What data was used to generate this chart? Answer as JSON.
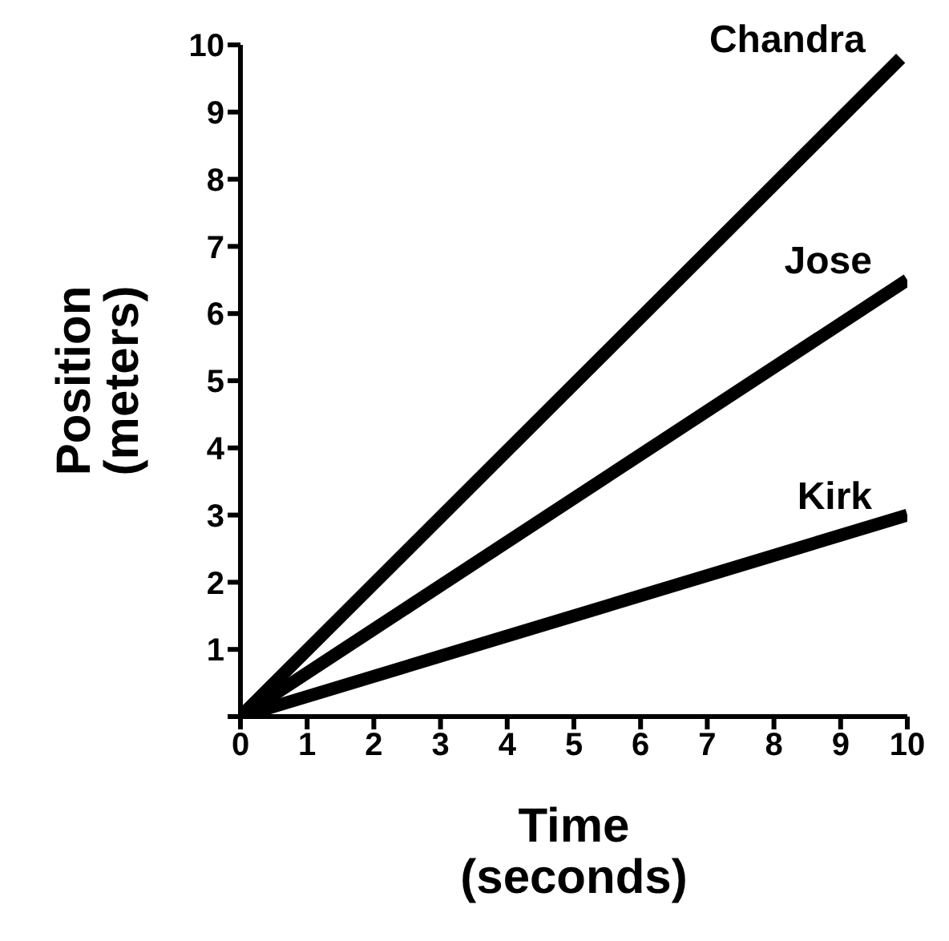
{
  "chart_data": {
    "type": "line",
    "xlabel": "Time\n(seconds)",
    "ylabel": "Position\n(meters)",
    "series": [
      {
        "name": "Chandra",
        "color": "#000000",
        "x": [
          0,
          9.9
        ],
        "values": [
          0,
          9.8
        ]
      },
      {
        "name": "Jose",
        "color": "#000000",
        "x": [
          0,
          10
        ],
        "values": [
          0,
          6.5
        ]
      },
      {
        "name": "Kirk",
        "color": "#000000",
        "x": [
          0,
          10
        ],
        "values": [
          0,
          3
        ]
      }
    ],
    "xlim": [
      0,
      10
    ],
    "xticks": [
      0,
      1,
      2,
      3,
      4,
      5,
      6,
      7,
      8,
      9,
      10
    ],
    "ylim": [
      0,
      10
    ],
    "yticks": [
      {
        "value": 0,
        "label": null
      },
      1,
      2,
      3,
      4,
      5,
      6,
      7,
      8,
      9,
      10
    ],
    "grid": false,
    "legend": false,
    "marker": "none",
    "line_style": "solid"
  }
}
